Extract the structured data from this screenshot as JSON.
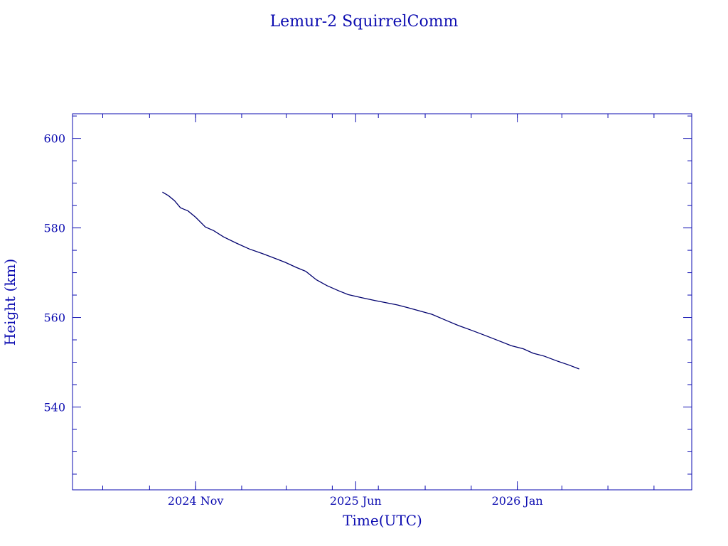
{
  "colors": {
    "ink": "#0b0bb0",
    "line": "#00006e",
    "background": "#ffffff"
  },
  "chart_data": {
    "type": "line",
    "title": "Lemur-2 SquirrelComm",
    "xlabel": "Time(UTC)",
    "ylabel": "Height (km)",
    "x_tick_labels": [
      {
        "date": "2024-11-01",
        "label": "2024 Nov"
      },
      {
        "date": "2025-06-01",
        "label": "2025 Jun"
      },
      {
        "date": "2026-01-01",
        "label": "2026 Jan"
      }
    ],
    "x_minor_tick_dates": [
      "2024-07-01",
      "2024-09-01",
      "2024-11-01",
      "2025-01-01",
      "2025-03-01",
      "2025-05-01",
      "2025-07-01",
      "2025-09-01",
      "2025-11-01",
      "2026-01-01",
      "2026-03-01",
      "2026-05-01",
      "2026-07-01"
    ],
    "xlim": [
      "2024-05-22",
      "2026-08-20"
    ],
    "ylim": [
      521.5,
      605.5
    ],
    "y_ticks": [
      540,
      560,
      580,
      600
    ],
    "y_minor_step": 5,
    "grid": false,
    "series": [
      {
        "x": [
          "2024-09-18",
          "2024-09-26",
          "2024-10-04",
          "2024-10-12",
          "2024-10-22",
          "2024-11-01",
          "2024-11-14",
          "2024-11-25",
          "2024-12-08",
          "2024-12-25",
          "2025-01-11",
          "2025-01-28",
          "2025-02-14",
          "2025-02-28",
          "2025-03-14",
          "2025-03-27",
          "2025-04-10",
          "2025-04-24",
          "2025-05-09",
          "2025-05-22",
          "2025-06-09",
          "2025-06-26",
          "2025-07-11",
          "2025-07-26",
          "2025-08-09",
          "2025-08-24",
          "2025-09-10",
          "2025-09-28",
          "2025-10-15",
          "2025-11-02",
          "2025-11-19",
          "2025-12-06",
          "2025-12-24",
          "2026-01-09",
          "2026-01-22",
          "2026-02-05",
          "2026-02-24",
          "2026-03-10",
          "2026-03-24"
        ],
        "y": [
          588.0,
          587.2,
          586.1,
          584.5,
          583.8,
          582.4,
          580.2,
          579.4,
          578.0,
          576.6,
          575.3,
          574.3,
          573.2,
          572.3,
          571.2,
          570.3,
          568.4,
          567.1,
          566.0,
          565.1,
          564.4,
          563.8,
          563.3,
          562.8,
          562.2,
          561.5,
          560.7,
          559.4,
          558.2,
          557.1,
          556.0,
          554.9,
          553.7,
          553.0,
          552.0,
          551.4,
          550.2,
          549.4,
          548.5
        ]
      }
    ]
  }
}
